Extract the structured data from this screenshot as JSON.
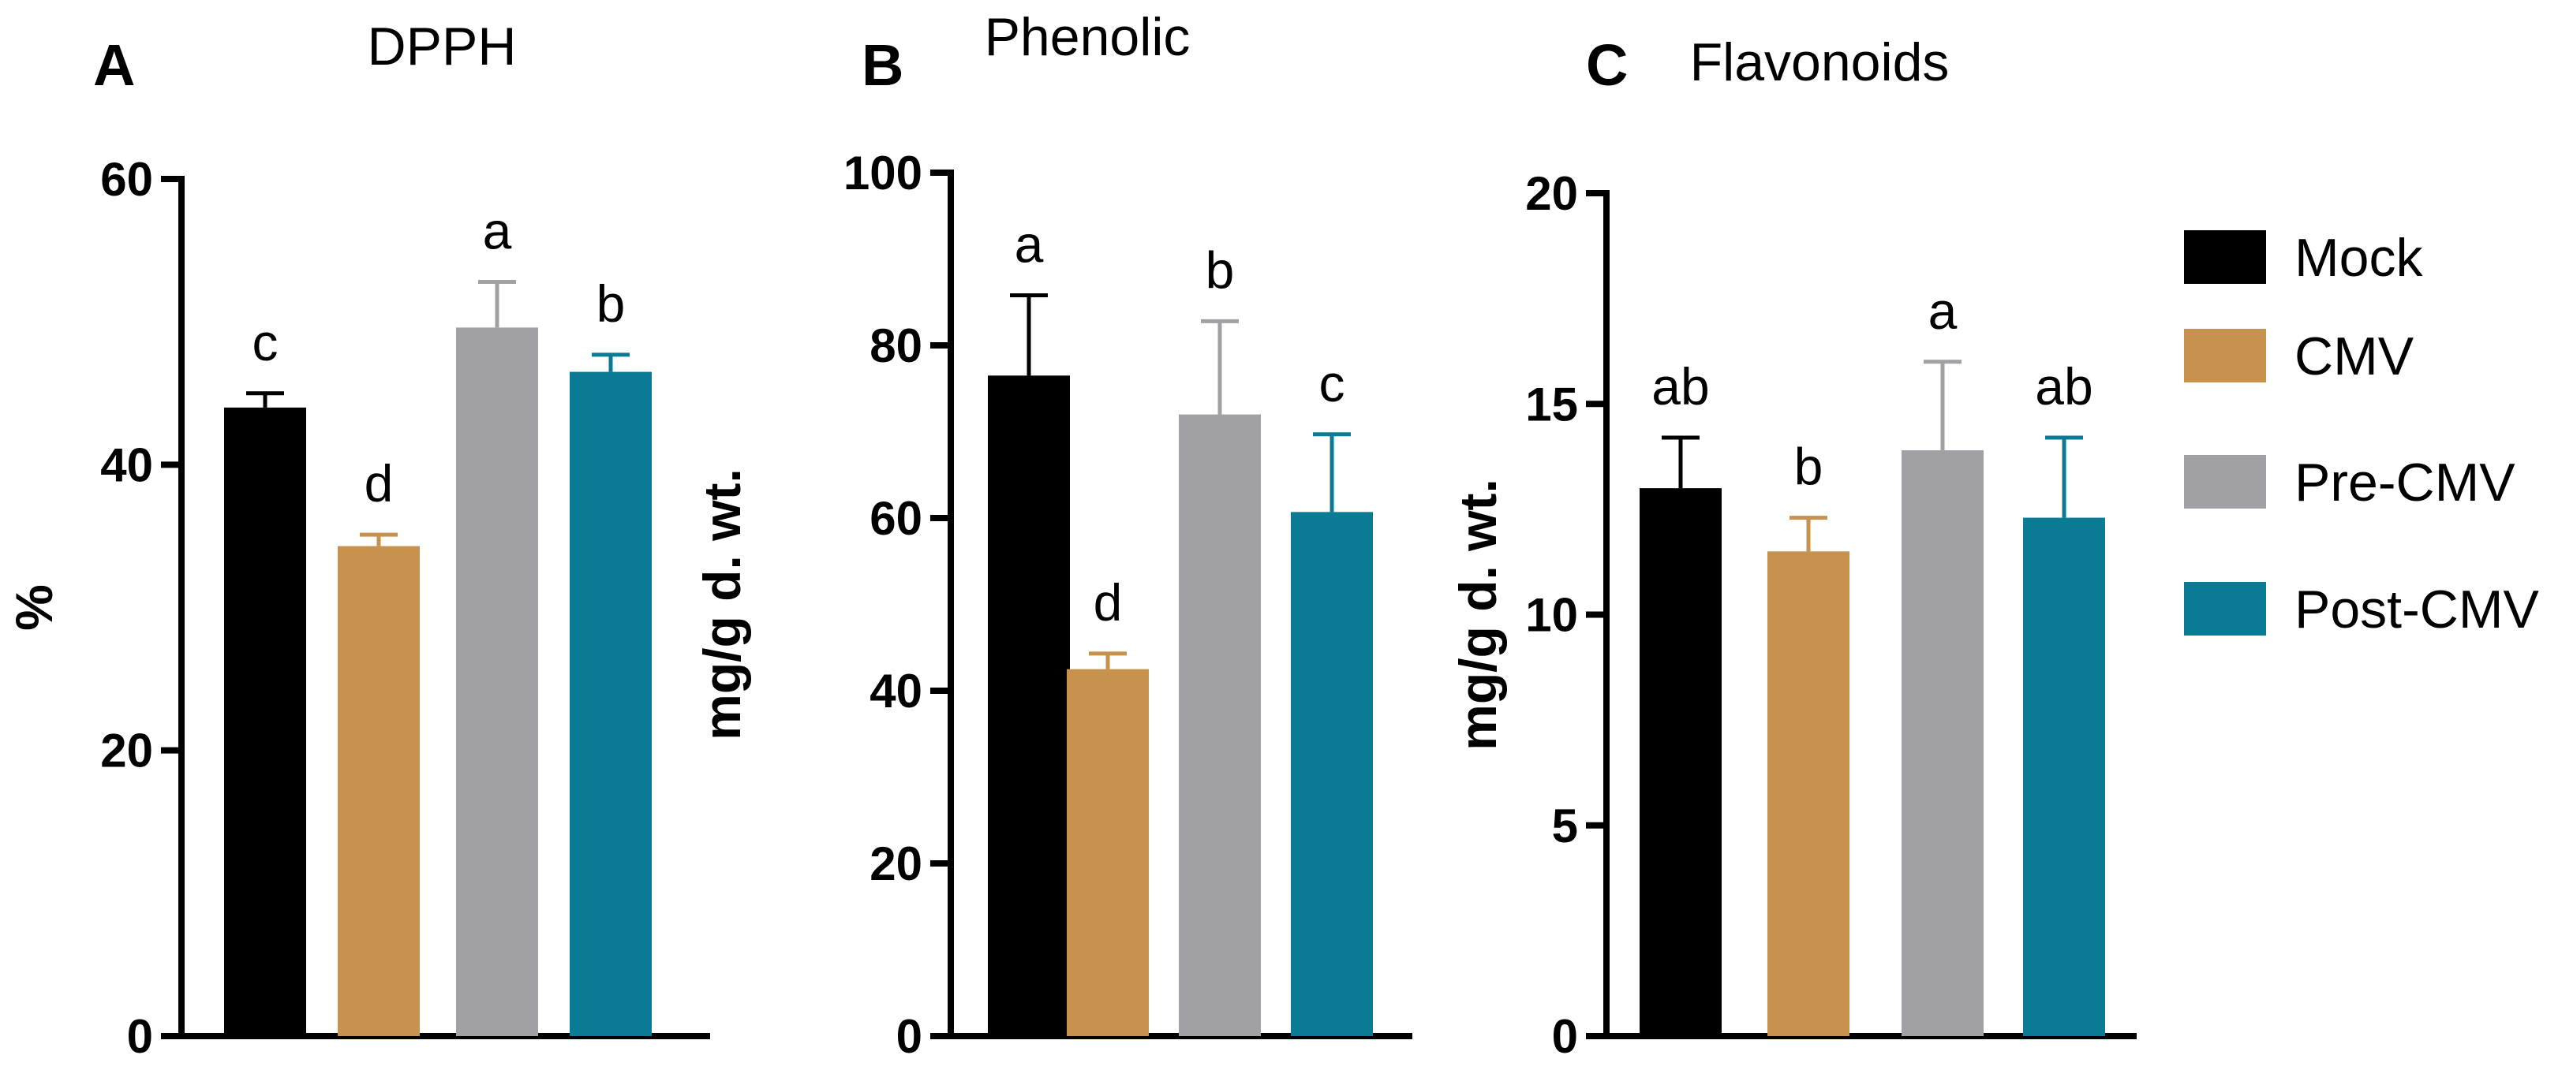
{
  "figure": {
    "series_colors": {
      "Mock": "#000000",
      "CMV": "#c6924d",
      "Pre-CMV": "#a1a0a5",
      "Post-CMV": "#0b7b95"
    },
    "legend": [
      {
        "label": "Mock",
        "color": "#000000"
      },
      {
        "label": "CMV",
        "color": "#c6924d"
      },
      {
        "label": "Pre-CMV",
        "color": "#a1a0a5"
      },
      {
        "label": "Post-CMV",
        "color": "#0b7b95"
      }
    ]
  },
  "chart_data": [
    {
      "type": "bar",
      "panel": "A",
      "title": "DPPH",
      "ylabel": "%",
      "xlabel": "",
      "categories": [
        "Mock",
        "CMV",
        "Pre-CMV",
        "Post-CMV"
      ],
      "values": [
        44.0,
        34.3,
        49.6,
        46.5
      ],
      "errors": [
        1.0,
        0.8,
        3.2,
        1.2
      ],
      "letters": [
        "c",
        "d",
        "a",
        "b"
      ],
      "ylim": [
        0,
        60
      ],
      "yticks": [
        0,
        20,
        40,
        60
      ],
      "ytick_labels": [
        "0",
        "20",
        "40",
        "60"
      ]
    },
    {
      "type": "bar",
      "panel": "B",
      "title": "Phenolic",
      "ylabel": "mg/g d. wt.",
      "xlabel": "",
      "categories": [
        "Mock",
        "CMV",
        "Pre-CMV",
        "Post-CMV"
      ],
      "values": [
        76.5,
        42.5,
        72.0,
        60.7
      ],
      "errors": [
        9.3,
        1.8,
        10.8,
        9.0
      ],
      "letters": [
        "a",
        "d",
        "b",
        "c"
      ],
      "ylim": [
        0,
        100
      ],
      "yticks": [
        0,
        20,
        40,
        60,
        80,
        100
      ],
      "ytick_labels": [
        "0",
        "20",
        "40",
        "60",
        "80",
        "100"
      ]
    },
    {
      "type": "bar",
      "panel": "C",
      "title": "Flavonoids",
      "ylabel": "mg/g d. wt.",
      "xlabel": "",
      "categories": [
        "Mock",
        "CMV",
        "Pre-CMV",
        "Post-CMV"
      ],
      "values": [
        13.0,
        11.5,
        13.9,
        12.3
      ],
      "errors": [
        1.2,
        0.8,
        2.1,
        1.9
      ],
      "letters": [
        "ab",
        "b",
        "a",
        "ab"
      ],
      "ylim": [
        0,
        20
      ],
      "yticks": [
        0,
        5,
        10,
        15,
        20
      ],
      "ytick_labels": [
        "0",
        "5",
        "10",
        "15",
        "20"
      ]
    }
  ]
}
